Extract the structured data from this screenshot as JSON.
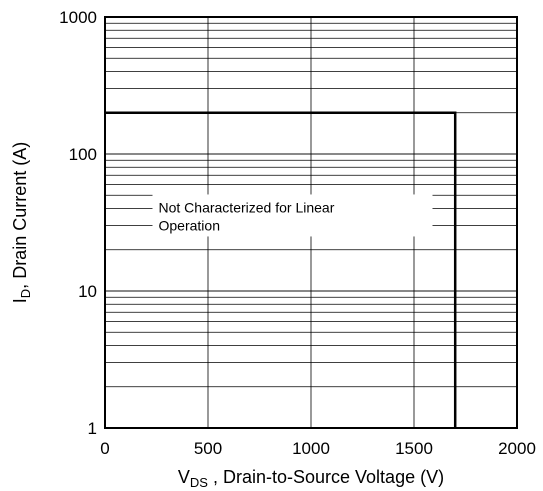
{
  "chart_data": {
    "type": "line",
    "title": "",
    "xlabel_main": "V",
    "xlabel_sub": "DS",
    "xlabel_rest": " , Drain-to-Source Voltage (V)",
    "ylabel_main": "I",
    "ylabel_sub": "D",
    "ylabel_rest": ", Drain Current (A)",
    "xlim": [
      0,
      2000
    ],
    "ylim": [
      1,
      1000
    ],
    "yscale": "log",
    "grid": true,
    "xticks": [
      0,
      500,
      1000,
      1500,
      2000
    ],
    "xtick_labels": [
      "0",
      "500",
      "1000",
      "1500",
      "2000"
    ],
    "yticks": [
      1,
      10,
      100,
      1000
    ],
    "ytick_labels": [
      "1",
      "10",
      "100",
      "1000"
    ],
    "series": [
      {
        "x": [
          0,
          1700,
          1700
        ],
        "y": [
          200,
          200,
          1
        ],
        "color": "#000000"
      }
    ],
    "annotation": {
      "lines": [
        "Not Characterized for Linear",
        "Operation"
      ],
      "x": 250,
      "y": 35
    }
  }
}
